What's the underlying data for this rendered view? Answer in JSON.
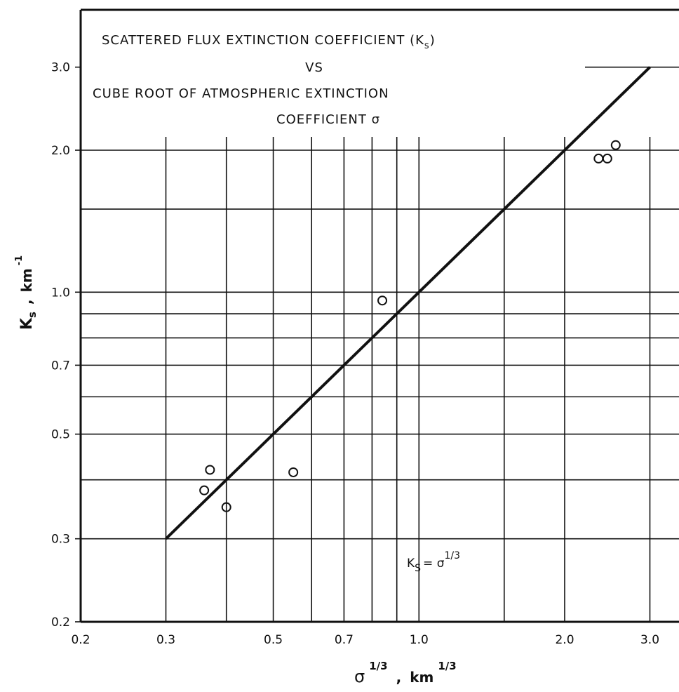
{
  "chart_data": {
    "type": "scatter",
    "title_lines": [
      "SCATTERED FLUX EXTINCTION COEFFICIENT (K",
      "VS",
      "CUBE ROOT OF ATMOSPHERIC EXTINCTION",
      "COEFFICIENT σ"
    ],
    "title_subscript": "s",
    "title_close": ")",
    "x_scale": "log",
    "y_scale": "log",
    "xlim": [
      0.2,
      3.0
    ],
    "ylim": [
      0.2,
      3.0
    ],
    "x_ticks": [
      {
        "v": 0.2,
        "label": "0.2"
      },
      {
        "v": 0.3,
        "label": "0.3"
      },
      {
        "v": 0.5,
        "label": "0.5"
      },
      {
        "v": 0.7,
        "label": "0.7"
      },
      {
        "v": 1.0,
        "label": "1.0"
      },
      {
        "v": 2.0,
        "label": "2.0"
      },
      {
        "v": 3.0,
        "label": "3.0"
      }
    ],
    "y_ticks": [
      {
        "v": 0.2,
        "label": "0.2"
      },
      {
        "v": 0.3,
        "label": "0.3"
      },
      {
        "v": 0.5,
        "label": "0.5"
      },
      {
        "v": 0.7,
        "label": "0.7"
      },
      {
        "v": 1.0,
        "label": "1.0"
      },
      {
        "v": 2.0,
        "label": "2.0"
      },
      {
        "v": 3.0,
        "label": "3.0"
      }
    ],
    "x_grid": [
      0.3,
      0.4,
      0.5,
      0.6,
      0.7,
      0.8,
      0.9,
      1.0,
      1.5,
      2.0,
      3.0
    ],
    "y_grid": [
      0.3,
      0.4,
      0.5,
      0.6,
      0.7,
      0.8,
      0.9,
      1.0,
      1.5,
      2.0,
      3.0
    ],
    "grid": true,
    "xlabel_base": "σ",
    "xlabel_exp": "1/3",
    "xlabel_sep": ",",
    "xlabel_unit": "km",
    "xlabel_unit_exp": "1/3",
    "ylabel_base": "K",
    "ylabel_sub": "s",
    "ylabel_sep": ",",
    "ylabel_unit": "km",
    "ylabel_unit_exp": "-1",
    "fit_line": {
      "x": [
        0.3,
        3.0
      ],
      "y": [
        0.3,
        3.0
      ]
    },
    "fit_label": {
      "lhs": "K",
      "lhs_sub": "S",
      "eq": "= σ",
      "exp": "1/3"
    },
    "points": [
      {
        "x": 0.36,
        "y": 0.38
      },
      {
        "x": 0.37,
        "y": 0.42
      },
      {
        "x": 0.4,
        "y": 0.35
      },
      {
        "x": 0.55,
        "y": 0.415
      },
      {
        "x": 0.84,
        "y": 0.96
      },
      {
        "x": 2.35,
        "y": 1.92
      },
      {
        "x": 2.45,
        "y": 1.92
      },
      {
        "x": 2.55,
        "y": 2.05
      }
    ]
  }
}
